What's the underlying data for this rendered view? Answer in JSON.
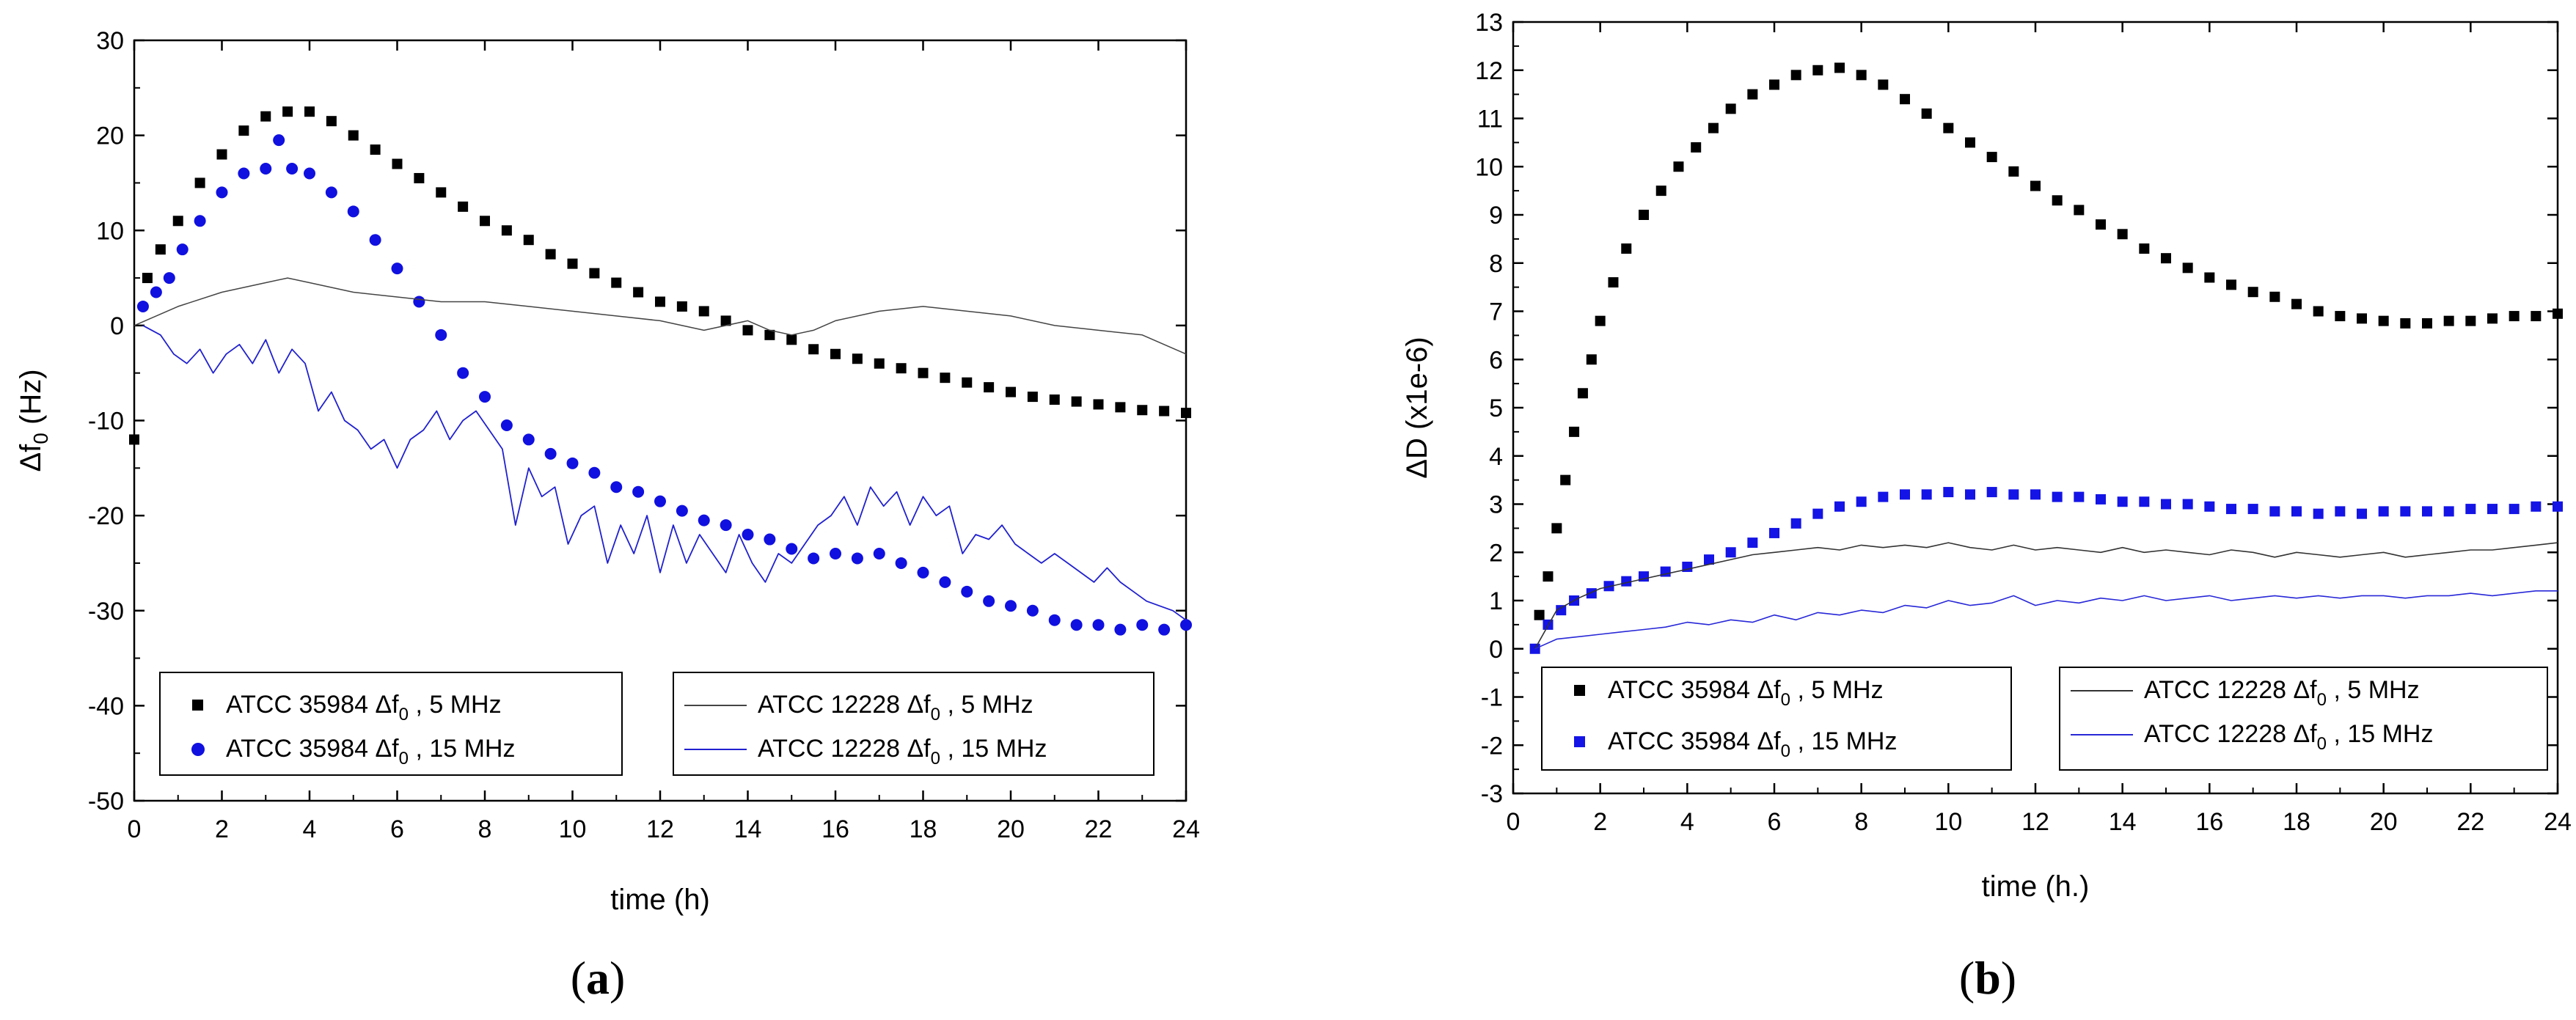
{
  "chart_data": [
    {
      "type": "scatter",
      "panel_label": {
        "open": "(",
        "letter": "a",
        "close": ")"
      },
      "xlabel": "time (h)",
      "ylabel": {
        "main": "Δf",
        "sub": "0",
        "unit": " (Hz)"
      },
      "xlim": [
        0,
        24
      ],
      "ylim": [
        -50,
        30
      ],
      "xticks": [
        "0",
        "2",
        "4",
        "6",
        "8",
        "10",
        "12",
        "14",
        "16",
        "18",
        "20",
        "22",
        "24"
      ],
      "yticks": [
        "-50",
        "-40",
        "-30",
        "-20",
        "-10",
        "0",
        "10",
        "20",
        "30"
      ],
      "grid": false,
      "legend_placement": "bottom",
      "series": [
        {
          "name": {
            "main": "ATCC 35984 Δf",
            "sub": "0",
            "tail": " , 5 MHz"
          },
          "style": "square",
          "color": "#000000",
          "x": [
            0,
            0.3,
            0.6,
            1,
            1.5,
            2,
            2.5,
            3,
            3.5,
            4,
            4.5,
            5,
            5.5,
            6,
            6.5,
            7,
            7.5,
            8,
            8.5,
            9,
            9.5,
            10,
            10.5,
            11,
            11.5,
            12,
            12.5,
            13,
            13.5,
            14,
            14.5,
            15,
            15.5,
            16,
            16.5,
            17,
            17.5,
            18,
            18.5,
            19,
            19.5,
            20,
            20.5,
            21,
            21.5,
            22,
            22.5,
            23,
            23.5,
            24
          ],
          "y": [
            -12,
            5,
            8,
            11,
            15,
            18,
            20.5,
            22,
            22.5,
            22.5,
            21.5,
            20,
            18.5,
            17,
            15.5,
            14,
            12.5,
            11,
            10,
            9,
            7.5,
            6.5,
            5.5,
            4.5,
            3.5,
            2.5,
            2,
            1.5,
            0.5,
            -0.5,
            -1,
            -1.5,
            -2.5,
            -3,
            -3.5,
            -4,
            -4.5,
            -5,
            -5.5,
            -6,
            -6.5,
            -7,
            -7.5,
            -7.8,
            -8,
            -8.3,
            -8.6,
            -8.9,
            -9,
            -9.2
          ]
        },
        {
          "name": {
            "main": "ATCC 35984 Δf",
            "sub": "0",
            "tail": " , 15 MHz"
          },
          "style": "circle",
          "color": "#1010e0",
          "x": [
            0.2,
            0.5,
            0.8,
            1.1,
            1.5,
            2,
            2.5,
            3,
            3.3,
            3.6,
            4,
            4.5,
            5,
            5.5,
            6,
            6.5,
            7,
            7.5,
            8,
            8.5,
            9,
            9.5,
            10,
            10.5,
            11,
            11.5,
            12,
            12.5,
            13,
            13.5,
            14,
            14.5,
            15,
            15.5,
            16,
            16.5,
            17,
            17.5,
            18,
            18.5,
            19,
            19.5,
            20,
            20.5,
            21,
            21.5,
            22,
            22.5,
            23,
            23.5,
            24
          ],
          "y": [
            2,
            3.5,
            5,
            8,
            11,
            14,
            16,
            16.5,
            19.5,
            16.5,
            16,
            14,
            12,
            9,
            6,
            2.5,
            -1,
            -5,
            -7.5,
            -10.5,
            -12,
            -13.5,
            -14.5,
            -15.5,
            -17,
            -17.5,
            -18.5,
            -19.5,
            -20.5,
            -21,
            -22,
            -22.5,
            -23.5,
            -24.5,
            -24,
            -24.5,
            -24,
            -25,
            -26,
            -27,
            -28,
            -29,
            -29.5,
            -30,
            -31,
            -31.5,
            -31.5,
            -32,
            -31.5,
            -32,
            -31.5
          ]
        },
        {
          "name": {
            "main": "ATCC 12228 Δf",
            "sub": "0",
            "tail": " , 5 MHz"
          },
          "style": "line",
          "color": "#444444",
          "width": 1.5,
          "x": [
            0,
            1,
            2,
            3,
            3.5,
            4,
            5,
            6,
            7,
            8,
            9,
            10,
            11,
            12,
            12.5,
            13,
            14,
            14.5,
            15,
            15.5,
            16,
            17,
            18,
            19,
            20,
            21,
            22,
            23,
            23.5,
            24
          ],
          "y": [
            0,
            2,
            3.5,
            4.5,
            5,
            4.5,
            3.5,
            3,
            2.5,
            2.5,
            2,
            1.5,
            1,
            0.5,
            0,
            -0.5,
            0.5,
            -0.5,
            -1,
            -0.5,
            0.5,
            1.5,
            2,
            1.5,
            1,
            0,
            -0.5,
            -1,
            -2,
            -3
          ]
        },
        {
          "name": {
            "main": "ATCC 12228 Δf",
            "sub": "0",
            "tail": " , 15 MHz"
          },
          "style": "line",
          "color": "#2020d0",
          "width": 1.8,
          "x": [
            0.2,
            0.6,
            0.9,
            1.2,
            1.5,
            1.8,
            2.1,
            2.4,
            2.7,
            3,
            3.3,
            3.6,
            3.9,
            4.2,
            4.5,
            4.8,
            5.1,
            5.4,
            5.7,
            6,
            6.3,
            6.6,
            6.9,
            7.2,
            7.5,
            7.8,
            8.1,
            8.4,
            8.7,
            9,
            9.3,
            9.6,
            9.9,
            10.2,
            10.5,
            10.8,
            11.1,
            11.4,
            11.7,
            12,
            12.3,
            12.6,
            12.9,
            13.2,
            13.5,
            13.8,
            14.1,
            14.4,
            14.7,
            15,
            15.3,
            15.6,
            15.9,
            16.2,
            16.5,
            16.8,
            17.1,
            17.4,
            17.7,
            18,
            18.3,
            18.6,
            18.9,
            19.2,
            19.5,
            19.8,
            20.1,
            20.4,
            20.7,
            21,
            21.3,
            21.6,
            21.9,
            22.2,
            22.5,
            22.8,
            23.1,
            23.4,
            23.7,
            24
          ],
          "y": [
            0,
            -1,
            -3,
            -4,
            -2.5,
            -5,
            -3,
            -2,
            -4,
            -1.5,
            -5,
            -2.5,
            -4,
            -9,
            -7,
            -10,
            -11,
            -13,
            -12,
            -15,
            -12,
            -11,
            -9,
            -12,
            -10,
            -9,
            -11,
            -13,
            -21,
            -15,
            -18,
            -17,
            -23,
            -20,
            -19,
            -25,
            -21,
            -24,
            -20,
            -26,
            -21,
            -25,
            -22,
            -24,
            -26,
            -22,
            -25,
            -27,
            -24,
            -25,
            -23,
            -21,
            -20,
            -18,
            -21,
            -17,
            -19,
            -17.5,
            -21,
            -18,
            -20,
            -19,
            -24,
            -22,
            -22.5,
            -21,
            -23,
            -24,
            -25,
            -24,
            -25,
            -26,
            -27,
            -25.5,
            -27,
            -28,
            -29,
            -29.5,
            -30,
            -31
          ]
        }
      ]
    },
    {
      "type": "scatter",
      "panel_label": {
        "open": "(",
        "letter": "b",
        "close": ")"
      },
      "xlabel": "time (h.)",
      "ylabel": {
        "main": "ΔD (x1e-6)"
      },
      "xlim": [
        0,
        24
      ],
      "ylim": [
        -3,
        13
      ],
      "xticks": [
        "0",
        "2",
        "4",
        "6",
        "8",
        "10",
        "12",
        "14",
        "16",
        "18",
        "20",
        "22",
        "24"
      ],
      "yticks": [
        "-3",
        "-2",
        "-1",
        "0",
        "1",
        "2",
        "3",
        "4",
        "5",
        "6",
        "7",
        "8",
        "9",
        "10",
        "11",
        "12",
        "13"
      ],
      "grid": false,
      "legend_placement": "bottom",
      "series": [
        {
          "name": {
            "main": "ATCC 35984 Δf",
            "sub": "0",
            "tail": " , 5 MHz"
          },
          "style": "square",
          "color": "#000000",
          "x": [
            0.6,
            0.8,
            1,
            1.2,
            1.4,
            1.6,
            1.8,
            2,
            2.3,
            2.6,
            3,
            3.4,
            3.8,
            4.2,
            4.6,
            5,
            5.5,
            6,
            6.5,
            7,
            7.5,
            8,
            8.5,
            9,
            9.5,
            10,
            10.5,
            11,
            11.5,
            12,
            12.5,
            13,
            13.5,
            14,
            14.5,
            15,
            15.5,
            16,
            16.5,
            17,
            17.5,
            18,
            18.5,
            19,
            19.5,
            20,
            20.5,
            21,
            21.5,
            22,
            22.5,
            23,
            23.5,
            24
          ],
          "y": [
            0.7,
            1.5,
            2.5,
            3.5,
            4.5,
            5.3,
            6,
            6.8,
            7.6,
            8.3,
            9,
            9.5,
            10,
            10.4,
            10.8,
            11.2,
            11.5,
            11.7,
            11.9,
            12,
            12.05,
            11.9,
            11.7,
            11.4,
            11.1,
            10.8,
            10.5,
            10.2,
            9.9,
            9.6,
            9.3,
            9.1,
            8.8,
            8.6,
            8.3,
            8.1,
            7.9,
            7.7,
            7.55,
            7.4,
            7.3,
            7.15,
            7,
            6.9,
            6.85,
            6.8,
            6.75,
            6.75,
            6.8,
            6.8,
            6.85,
            6.9,
            6.9,
            6.95
          ]
        },
        {
          "name": {
            "main": "ATCC 35984 Δf",
            "sub": "0",
            "tail": " , 15 MHz"
          },
          "style": "square",
          "color": "#1414e6",
          "x": [
            0.5,
            0.8,
            1.1,
            1.4,
            1.8,
            2.2,
            2.6,
            3,
            3.5,
            4,
            4.5,
            5,
            5.5,
            6,
            6.5,
            7,
            7.5,
            8,
            8.5,
            9,
            9.5,
            10,
            10.5,
            11,
            11.5,
            12,
            12.5,
            13,
            13.5,
            14,
            14.5,
            15,
            15.5,
            16,
            16.5,
            17,
            17.5,
            18,
            18.5,
            19,
            19.5,
            20,
            20.5,
            21,
            21.5,
            22,
            22.5,
            23,
            23.5,
            24
          ],
          "y": [
            0,
            0.5,
            0.8,
            1,
            1.15,
            1.3,
            1.4,
            1.5,
            1.6,
            1.7,
            1.85,
            2,
            2.2,
            2.4,
            2.6,
            2.8,
            2.95,
            3.05,
            3.15,
            3.2,
            3.2,
            3.25,
            3.2,
            3.25,
            3.2,
            3.2,
            3.15,
            3.15,
            3.1,
            3.05,
            3.05,
            3,
            3,
            2.95,
            2.9,
            2.9,
            2.85,
            2.85,
            2.8,
            2.85,
            2.8,
            2.85,
            2.85,
            2.85,
            2.85,
            2.9,
            2.9,
            2.9,
            2.95,
            2.95
          ]
        },
        {
          "name": {
            "main": "ATCC 12228 Δf",
            "sub": "0",
            "tail": " , 5 MHz"
          },
          "style": "line",
          "color": "#333333",
          "width": 1.6,
          "x": [
            0.5,
            1,
            1.5,
            2,
            2.5,
            3,
            3.5,
            4,
            4.5,
            5,
            5.5,
            6,
            6.5,
            7,
            7.5,
            8,
            8.5,
            9,
            9.5,
            10,
            10.5,
            11,
            11.5,
            12,
            12.5,
            13,
            13.5,
            14,
            14.5,
            15,
            15.5,
            16,
            16.5,
            17,
            17.5,
            18,
            18.5,
            19,
            19.5,
            20,
            20.5,
            21,
            21.5,
            22,
            22.5,
            23,
            23.5,
            24
          ],
          "y": [
            0,
            0.8,
            1.05,
            1.25,
            1.35,
            1.45,
            1.55,
            1.65,
            1.75,
            1.85,
            1.95,
            2,
            2.05,
            2.1,
            2.05,
            2.15,
            2.1,
            2.15,
            2.1,
            2.2,
            2.1,
            2.05,
            2.15,
            2.05,
            2.1,
            2.05,
            2,
            2.1,
            2,
            2.05,
            2,
            1.95,
            2.05,
            2,
            1.9,
            2,
            1.95,
            1.9,
            1.95,
            2,
            1.9,
            1.95,
            2,
            2.05,
            2.05,
            2.1,
            2.15,
            2.2
          ]
        },
        {
          "name": {
            "main": "ATCC 12228 Δf",
            "sub": "0",
            "tail": " , 15 MHz"
          },
          "style": "line",
          "color": "#2828d8",
          "width": 1.6,
          "x": [
            0.5,
            1,
            1.5,
            2,
            2.5,
            3,
            3.5,
            4,
            4.5,
            5,
            5.5,
            6,
            6.5,
            7,
            7.5,
            8,
            8.5,
            9,
            9.5,
            10,
            10.5,
            11,
            11.5,
            12,
            12.5,
            13,
            13.5,
            14,
            14.5,
            15,
            15.5,
            16,
            16.5,
            17,
            17.5,
            18,
            18.5,
            19,
            19.5,
            20,
            20.5,
            21,
            21.5,
            22,
            22.5,
            23,
            23.5,
            24
          ],
          "y": [
            0,
            0.2,
            0.25,
            0.3,
            0.35,
            0.4,
            0.45,
            0.55,
            0.5,
            0.6,
            0.55,
            0.7,
            0.6,
            0.75,
            0.7,
            0.8,
            0.75,
            0.9,
            0.85,
            1,
            0.9,
            0.95,
            1.1,
            0.9,
            1,
            0.95,
            1.05,
            1,
            1.1,
            1,
            1.05,
            1.1,
            1,
            1.05,
            1.1,
            1.05,
            1.1,
            1.05,
            1.1,
            1.1,
            1.05,
            1.1,
            1.1,
            1.15,
            1.1,
            1.15,
            1.2,
            1.2
          ]
        }
      ]
    }
  ]
}
